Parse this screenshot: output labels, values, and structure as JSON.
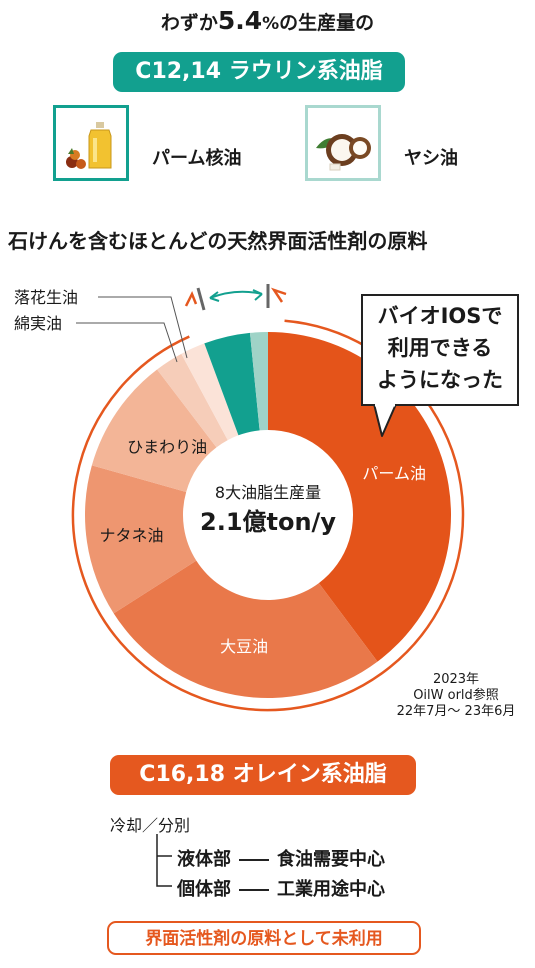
{
  "headline": {
    "prefix": "わずか",
    "number": "5.4",
    "percent_sign": "%",
    "suffix": "の生産量の"
  },
  "lauric": {
    "label": "C12,14 ラウリン系油脂",
    "sources": [
      {
        "label": "パーム核油",
        "icon": "palm-kernel-oil-bottle-icon"
      },
      {
        "label": "ヤシ油",
        "icon": "coconut-icon"
      }
    ]
  },
  "section_title": "石けんを含むほとんどの天然界面活性剤の原料",
  "callout": {
    "lines": [
      "バイオIOSで",
      "利用できる",
      "ようになった"
    ]
  },
  "colors": {
    "teal": "#12a08f",
    "light_teal": "#9fd3c7",
    "orange": "#e5581f",
    "palm": "#e4541a",
    "soybean": "#e9784a",
    "rapeseed": "#ee9670",
    "sunflower": "#f3b597",
    "peanut": "#f6cdb9",
    "cottonseed": "#fbe3d8"
  },
  "chart_data": {
    "type": "pie",
    "center_label": "8大油脂生産量",
    "center_value": "2.1億ton/y",
    "slices": [
      {
        "name": "パーム油",
        "value": 38.0,
        "color": "#e4541a",
        "label_color": "#ffffff"
      },
      {
        "name": "大豆油",
        "value": 25.0,
        "color": "#e9784a",
        "label_color": "#ffffff"
      },
      {
        "name": "ナタネ油",
        "value": 12.8,
        "color": "#ee9670",
        "label_color": "#1a1a1a"
      },
      {
        "name": "ひまわり油",
        "value": 9.8,
        "color": "#f3b597",
        "label_color": "#1a1a1a"
      },
      {
        "name": "落花生油",
        "value": 2.4,
        "color": "#f6cdb9",
        "label_color": "#1a1a1a",
        "label_outside": true
      },
      {
        "name": "綿実油",
        "value": 2.1,
        "color": "#fbe3d8",
        "label_color": "#1a1a1a",
        "label_outside": true
      },
      {
        "name": "パーム核油",
        "value": 3.9,
        "color": "#12a08f",
        "unlabeled": true
      },
      {
        "name": "ヤシ油",
        "value": 1.5,
        "color": "#9fd3c7",
        "unlabeled": true
      }
    ]
  },
  "source_note": {
    "year": "2023年",
    "source": "OilW orld参照",
    "period": "22年7月～ 23年6月"
  },
  "oleic": {
    "label": "C16,18 オレイン系油脂",
    "separation": "冷却／分別",
    "liquid_part": "液体部",
    "liquid_use": "食油需要中心",
    "solid_part": "個体部",
    "solid_use": "工業用途中心"
  },
  "bottom_note": "界面活性剤の原料として未利用"
}
